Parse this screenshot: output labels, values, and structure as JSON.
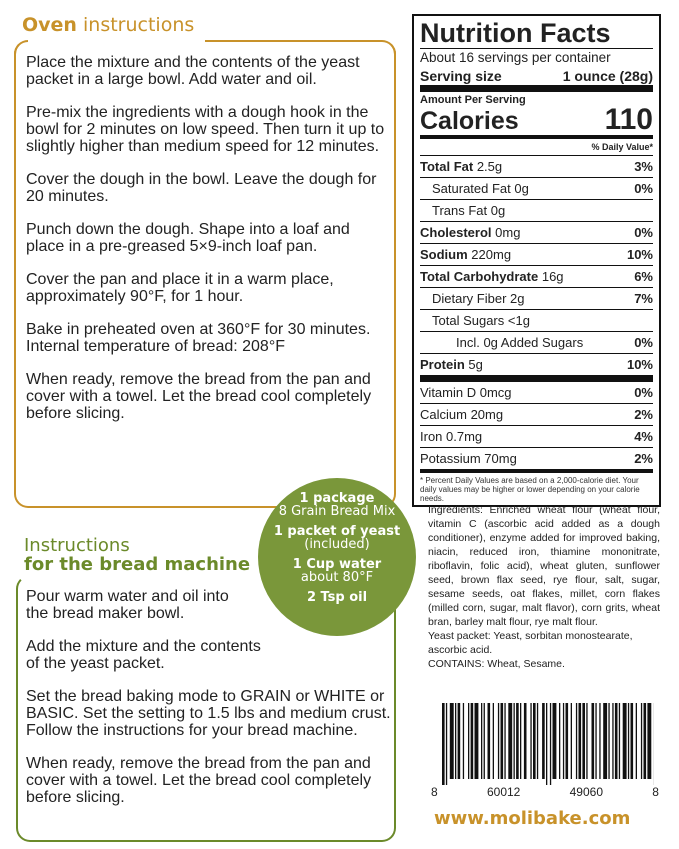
{
  "oven": {
    "title_bold": "Oven",
    "title_rest": " instructions",
    "steps": [
      "Place the mixture and the contents of the yeast packet in a large bowl. Add water and oil.",
      "Pre-mix the ingredients with a dough hook in the bowl for 2 minutes on low speed. Then turn it up to slightly higher than medium speed for 12 minutes.",
      "Cover the dough in the bowl. Leave the dough for 20 minutes.",
      "Punch down the dough. Shape into a loaf and place in a pre-greased 5×9-inch loaf pan.",
      "Cover the pan and place it in a warm place, approximately 90°F, for 1 hour.",
      "Bake in preheated oven at 360°F for 30 minutes. Internal temperature of bread: 208°F",
      "When ready, remove the bread from the pan and cover with a towel. Let the bread cool completely before slicing."
    ]
  },
  "bread_machine": {
    "title_line1": "Instructions",
    "title_line2": "for the bread machine",
    "steps": [
      "Pour warm water and oil into the bread maker bowl.",
      "Add the mixture and the contents of the yeast packet.",
      "Set the bread baking mode to GRAIN or WHITE or BASIC. Set the setting to 1.5 lbs and medium crust. Follow the instructions for your bread machine.",
      "When ready, remove the bread from the pan and cover with a towel. Let the bread cool completely before slicing."
    ]
  },
  "ingredients_circle": [
    {
      "main": "1 package",
      "sub": "8 Grain Bread Mix"
    },
    {
      "main": "1 packet of yeast",
      "sub": "(included)"
    },
    {
      "main": "1 Cup water",
      "sub": "about 80°F"
    },
    {
      "main": "2 Tsp oil",
      "sub": ""
    }
  ],
  "nutrition": {
    "title": "Nutrition Facts",
    "servings": "About 16 servings per container",
    "serving_label": "Serving size",
    "serving_value": "1 ounce (28g)",
    "amount_per": "Amount Per Serving",
    "calories_label": "Calories",
    "calories": "110",
    "dv_header": "% Daily Value*",
    "rows": [
      {
        "label": "Total Fat",
        "amount": "2.5g",
        "dv": "3%",
        "bold": true,
        "indent": 0
      },
      {
        "label": "Saturated Fat",
        "amount": "0g",
        "dv": "0%",
        "bold": false,
        "indent": 1
      },
      {
        "label": "Trans Fat",
        "amount": "0g",
        "dv": "",
        "bold": false,
        "indent": 1
      },
      {
        "label": "Cholesterol",
        "amount": "0mg",
        "dv": "0%",
        "bold": true,
        "indent": 0
      },
      {
        "label": "Sodium",
        "amount": "220mg",
        "dv": "10%",
        "bold": true,
        "indent": 0
      },
      {
        "label": "Total Carbohydrate",
        "amount": "16g",
        "dv": "6%",
        "bold": true,
        "indent": 0
      },
      {
        "label": "Dietary Fiber",
        "amount": "2g",
        "dv": "7%",
        "bold": false,
        "indent": 1
      },
      {
        "label": "Total Sugars",
        "amount": "<1g",
        "dv": "",
        "bold": false,
        "indent": 1
      },
      {
        "label": "Incl. 0g Added Sugars",
        "amount": "",
        "dv": "0%",
        "bold": false,
        "indent": 3
      },
      {
        "label": "Protein",
        "amount": "5g",
        "dv": "10%",
        "bold": true,
        "indent": 0
      }
    ],
    "vitamins": [
      {
        "label": "Vitamin D 0mcg",
        "dv": "0%"
      },
      {
        "label": "Calcium 20mg",
        "dv": "2%"
      },
      {
        "label": "Iron 0.7mg",
        "dv": "4%"
      },
      {
        "label": "Potassium 70mg",
        "dv": "2%"
      }
    ],
    "footnote": "* Percent Daily Values are based on a 2,000-calorie diet. Your daily values may be higher or lower depending on your calorie needs."
  },
  "ingredients": "Ingredients: Enriched wheat flour (wheat flour, vitamin C (ascorbic acid added as a dough conditioner), enzyme added for improved baking, niacin, reduced iron, thiamine mononitrate, riboflavin, folic acid), wheat gluten, sunflower seed, brown flax seed, rye flour, salt, sugar, sesame seeds, oat flakes, millet, corn flakes (milled corn, sugar, malt flavor), corn grits, wheat bran, barley malt flour, rye malt flour.",
  "yeast_packet": "Yeast packet: Yeast, sorbitan monostearate, ascorbic acid.",
  "contains": "CONTAINS: Wheat, Sesame.",
  "barcode": {
    "digits": [
      "8",
      "60012",
      "49060",
      "8"
    ]
  },
  "website": "www.molibake.com",
  "colors": {
    "oven_accent": "#c8922a",
    "machine_accent": "#6b8a2a",
    "circle": "#7a973a"
  }
}
